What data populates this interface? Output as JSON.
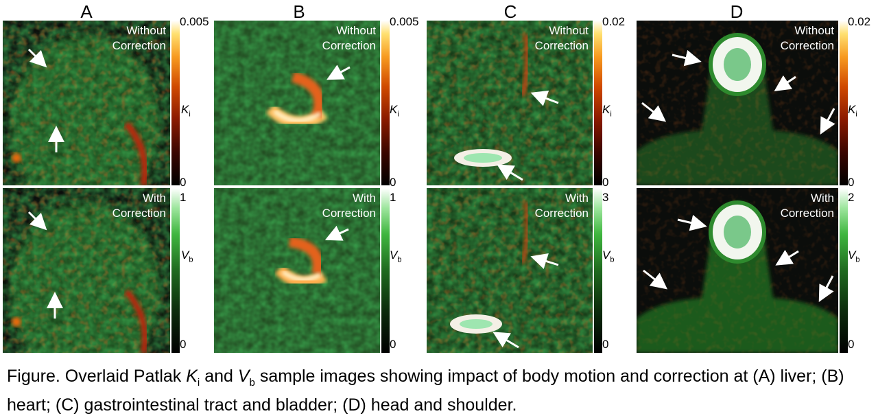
{
  "panels": [
    {
      "letter": "A",
      "top": {
        "label": "Without\nCorrection",
        "max": "0.005",
        "min": "0"
      },
      "bottom": {
        "label": "With\nCorrection",
        "max": "1",
        "min": "0"
      }
    },
    {
      "letter": "B",
      "top": {
        "label": "Without\nCorrection",
        "max": "0.005",
        "min": "0"
      },
      "bottom": {
        "label": "With\nCorrection",
        "max": "1",
        "min": "0"
      }
    },
    {
      "letter": "C",
      "top": {
        "label": "Without\nCorrection",
        "max": "0.02",
        "min": "0"
      },
      "bottom": {
        "label": "With\nCorrection",
        "max": "3",
        "min": "0"
      }
    },
    {
      "letter": "D",
      "top": {
        "label": "Without\nCorrection",
        "max": "0.02",
        "min": "0"
      },
      "bottom": {
        "label": "With\nCorrection",
        "max": "2",
        "min": "0"
      }
    }
  ],
  "colorbars": {
    "ki": {
      "symbol": "K",
      "subscript": "i"
    },
    "vb": {
      "symbol": "V",
      "subscript": "b"
    }
  },
  "colors": {
    "ki_high": "#ffe070",
    "ki_mid": "#d04a00",
    "vb_high": "#3fb63f",
    "background": "#0b0d0b"
  },
  "caption": {
    "part1": "Figure. Overlaid Patlak ",
    "ki_symbol": "K",
    "ki_sub": "i",
    "part2": " and ",
    "vb_symbol": "V",
    "vb_sub": "b",
    "part3": " sample images showing impact of body motion and correction at (A) liver; (B) heart; (C) gastrointestinal tract and bladder; (D) head and shoulder."
  }
}
